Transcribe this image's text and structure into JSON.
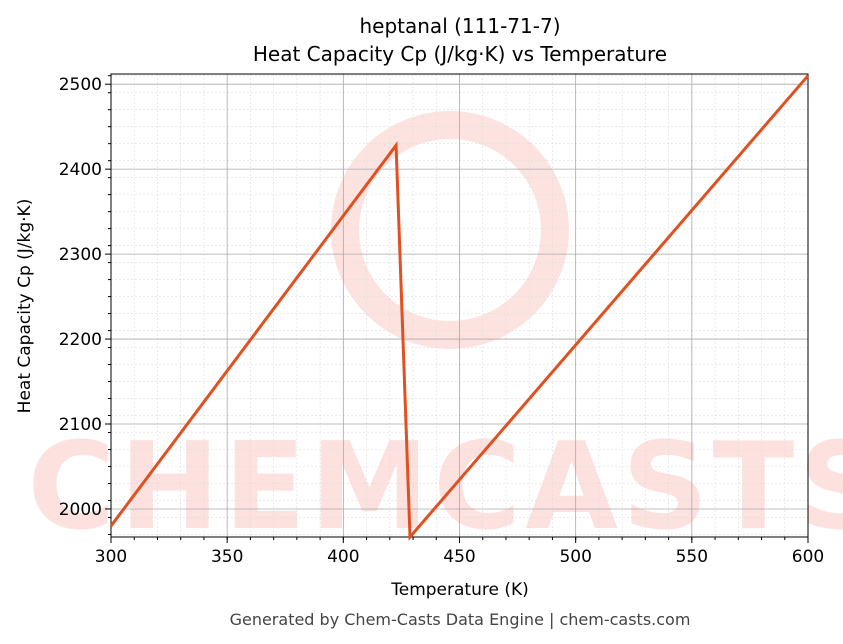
{
  "chart_data": {
    "type": "line",
    "title": "heptanal (111-71-7)",
    "subtitle": "Heat Capacity Cp (J/kg·K) vs Temperature",
    "xlabel": "Temperature (K)",
    "ylabel": "Heat Capacity Cp (J/kg·K)",
    "xlim": [
      300,
      600
    ],
    "ylim": [
      1967,
      2512
    ],
    "xticks": [
      300,
      350,
      400,
      450,
      500,
      550,
      600
    ],
    "yticks": [
      2000,
      2100,
      2200,
      2300,
      2400,
      2500
    ],
    "grid": true,
    "color": "#e05020",
    "series": [
      {
        "name": "Cp",
        "x": [
          300,
          422.7,
          428.7,
          600
        ],
        "y": [
          1980,
          2428,
          1967,
          2510
        ]
      }
    ]
  },
  "watermark": "CHEMCASTS",
  "footer": "Generated by Chem-Casts Data Engine | chem-casts.com"
}
